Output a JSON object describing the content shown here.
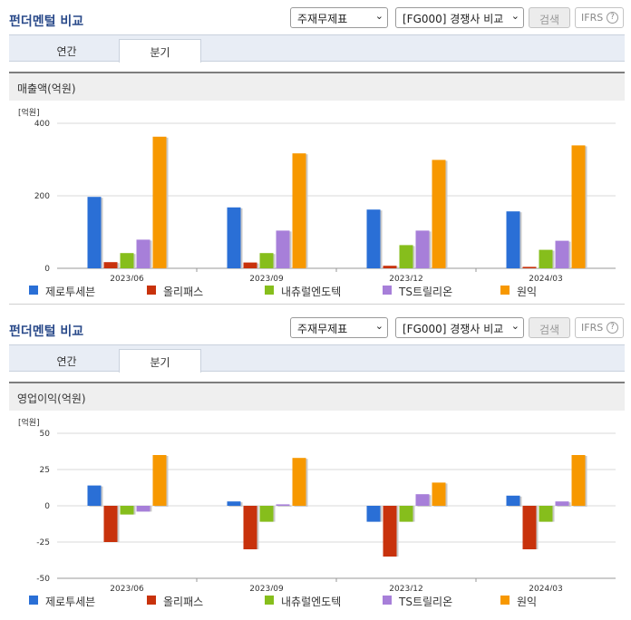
{
  "sections": [
    {
      "title": "펀더멘털 비교",
      "selects": {
        "statement": "주재무제표",
        "compare": "[FG000] 경쟁사 비교"
      },
      "search_label": "검색",
      "ifrs_label": "IFRS",
      "tabs": [
        {
          "label": "연간"
        },
        {
          "label": "분기"
        }
      ],
      "active_tab": "분기",
      "chart_heading": "매출액(억원)",
      "unit_label": "[억원]"
    },
    {
      "title": "펀더멘털 비교",
      "selects": {
        "statement": "주재무제표",
        "compare": "[FG000] 경쟁사 비교"
      },
      "search_label": "검색",
      "ifrs_label": "IFRS",
      "tabs": [
        {
          "label": "연간"
        },
        {
          "label": "분기"
        }
      ],
      "active_tab": "분기",
      "chart_heading": "영업이익(억원)",
      "unit_label": "[억원]"
    }
  ],
  "colors": {
    "series": [
      "#2a6fd6",
      "#c8320c",
      "#86be1c",
      "#a77fd9",
      "#f79800"
    ],
    "grid": "#d9d9d9",
    "axis": "#999999"
  },
  "chart_data": [
    {
      "type": "bar",
      "title": "매출액(억원)",
      "ylabel": "[억원]",
      "categories": [
        "2023/06",
        "2023/09",
        "2023/12",
        "2024/03"
      ],
      "ylim": [
        0,
        400
      ],
      "yticks": [
        0,
        200,
        400
      ],
      "grid": true,
      "legend": "bottom",
      "series": [
        {
          "name": "제로투세븐",
          "values": [
            197,
            168,
            162,
            157
          ]
        },
        {
          "name": "올리패스",
          "values": [
            17,
            16,
            7,
            4
          ]
        },
        {
          "name": "내츄럴엔도텍",
          "values": [
            42,
            42,
            64,
            51
          ]
        },
        {
          "name": "TS트릴리온",
          "values": [
            79,
            104,
            104,
            76
          ]
        },
        {
          "name": "원익",
          "values": [
            363,
            317,
            299,
            339
          ]
        }
      ]
    },
    {
      "type": "bar",
      "title": "영업이익(억원)",
      "ylabel": "[억원]",
      "categories": [
        "2023/06",
        "2023/09",
        "2023/12",
        "2024/03"
      ],
      "ylim": [
        -50,
        50
      ],
      "yticks": [
        -50,
        -25,
        0,
        25,
        50
      ],
      "grid": true,
      "legend": "bottom",
      "series": [
        {
          "name": "제로투세븐",
          "values": [
            14,
            3,
            -11,
            7
          ]
        },
        {
          "name": "올리패스",
          "values": [
            -25,
            -30,
            -35,
            -30
          ]
        },
        {
          "name": "내츄럴엔도텍",
          "values": [
            -6,
            -11,
            -11,
            -11
          ]
        },
        {
          "name": "TS트릴리온",
          "values": [
            -4,
            1,
            8,
            3
          ]
        },
        {
          "name": "원익",
          "values": [
            35,
            33,
            16,
            35
          ]
        }
      ]
    }
  ]
}
